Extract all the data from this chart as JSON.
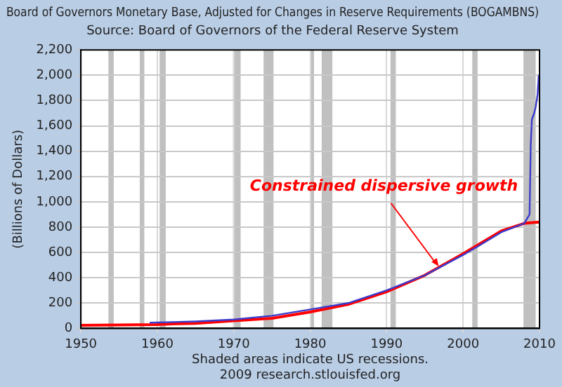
{
  "chart_data": {
    "type": "line",
    "title": "Board of Governors Monetary Base, Adjusted for Changes in Reserve Requirements (BOGAMBNS)",
    "subtitle": "Source: Board of Governors of the Federal Reserve System",
    "ylabel": "(Billions of Dollars)",
    "series": [
      {
        "color": "#3a3acc",
        "x": [
          1959,
          1965,
          1970,
          1975,
          1980,
          1985,
          1990,
          1995,
          2000,
          2002,
          2005,
          2008,
          2008.7,
          2008.85,
          2009,
          2009.3,
          2009.5,
          2009.75,
          2009.9
        ],
        "values": [
          45,
          55,
          70,
          100,
          150,
          200,
          300,
          420,
          580,
          650,
          760,
          830,
          900,
          1450,
          1650,
          1700,
          1750,
          1850,
          2000
        ]
      },
      {
        "color": "#ff0000",
        "x": [
          1950,
          1955,
          1960,
          1962,
          1965,
          1970,
          1975,
          1980,
          1985,
          1990,
          1995,
          2000,
          2005,
          2008,
          2010
        ],
        "values": [
          25,
          27,
          30,
          35,
          40,
          60,
          80,
          130,
          190,
          290,
          420,
          590,
          770,
          830,
          840
        ]
      }
    ],
    "xlim": [
      1950,
      2010
    ],
    "xticks": [
      1950,
      1960,
      1970,
      1980,
      1990,
      2000,
      2010
    ],
    "ylim": [
      0,
      2200
    ],
    "yticks": [
      0,
      {
        "value": 200,
        "label": "200"
      },
      {
        "value": 400,
        "label": "400"
      },
      {
        "value": 600,
        "label": "600"
      },
      {
        "value": 800,
        "label": "800"
      },
      {
        "value": 1000,
        "label": "1,000"
      },
      {
        "value": 1200,
        "label": "1,200"
      },
      {
        "value": 1400,
        "label": "1,400"
      },
      {
        "value": 1600,
        "label": "1,600"
      },
      {
        "value": 1800,
        "label": "1,800"
      },
      {
        "value": 2000,
        "label": "2,000"
      },
      {
        "value": 2200,
        "label": "2,200"
      }
    ],
    "bands": [
      {
        "axis": "x",
        "from": 1953.6,
        "to": 1954.3,
        "color": "#c0c0c0"
      },
      {
        "axis": "x",
        "from": 1957.7,
        "to": 1958.3,
        "color": "#c0c0c0"
      },
      {
        "axis": "x",
        "from": 1960.3,
        "to": 1961.1,
        "color": "#c0c0c0"
      },
      {
        "axis": "x",
        "from": 1969.9,
        "to": 1970.9,
        "color": "#c0c0c0"
      },
      {
        "axis": "x",
        "from": 1973.9,
        "to": 1975.2,
        "color": "#c0c0c0"
      },
      {
        "axis": "x",
        "from": 1980,
        "to": 1980.5,
        "color": "#c0c0c0"
      },
      {
        "axis": "x",
        "from": 1981.5,
        "to": 1982.9,
        "color": "#c0c0c0"
      },
      {
        "axis": "x",
        "from": 1990.5,
        "to": 1991.2,
        "color": "#c0c0c0"
      },
      {
        "axis": "x",
        "from": 2001.2,
        "to": 2001.9,
        "color": "#c0c0c0"
      },
      {
        "axis": "x",
        "from": 2007.9,
        "to": 2009.5,
        "color": "#c0c0c0"
      }
    ],
    "annotations": [
      {
        "text": "Constrained dispersive growth",
        "x": 1997,
        "y": 480
      },
      "Shaded areas indicate US recessions.",
      "2009 research.stlouisfed.org"
    ],
    "grid": true,
    "legend": false,
    "marker": "none",
    "line_style": "solid"
  }
}
